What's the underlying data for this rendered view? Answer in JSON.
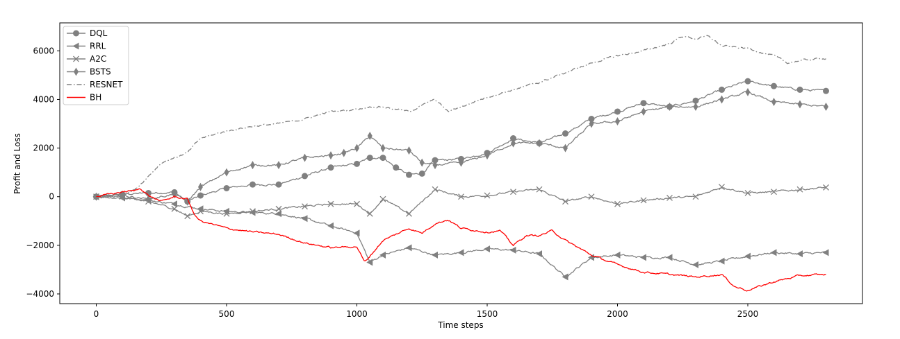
{
  "chart_data": {
    "type": "line",
    "title": "",
    "xlabel": "Time steps",
    "ylabel": "Profit and Loss",
    "xlim": [
      -140,
      2940
    ],
    "ylim": [
      -4400,
      7150
    ],
    "xticks": [
      0,
      500,
      1000,
      1500,
      2000,
      2500
    ],
    "yticks": [
      -4000,
      -2000,
      0,
      2000,
      4000,
      6000
    ],
    "grid": false,
    "legend_position": "top-left",
    "series": [
      {
        "name": "DQL",
        "color": "#808080",
        "style": "solid",
        "marker": "circle",
        "points": [
          [
            0,
            0
          ],
          [
            100,
            100
          ],
          [
            200,
            150
          ],
          [
            300,
            180
          ],
          [
            350,
            -200
          ],
          [
            400,
            50
          ],
          [
            500,
            350
          ],
          [
            600,
            500
          ],
          [
            700,
            500
          ],
          [
            800,
            850
          ],
          [
            900,
            1200
          ],
          [
            1000,
            1350
          ],
          [
            1050,
            1600
          ],
          [
            1100,
            1600
          ],
          [
            1150,
            1200
          ],
          [
            1200,
            900
          ],
          [
            1250,
            950
          ],
          [
            1300,
            1500
          ],
          [
            1400,
            1550
          ],
          [
            1500,
            1800
          ],
          [
            1600,
            2400
          ],
          [
            1700,
            2200
          ],
          [
            1800,
            2600
          ],
          [
            1900,
            3200
          ],
          [
            2000,
            3500
          ],
          [
            2100,
            3850
          ],
          [
            2200,
            3700
          ],
          [
            2300,
            3950
          ],
          [
            2400,
            4400
          ],
          [
            2500,
            4750
          ],
          [
            2600,
            4550
          ],
          [
            2700,
            4400
          ],
          [
            2800,
            4350
          ]
        ]
      },
      {
        "name": "RRL",
        "color": "#808080",
        "style": "solid",
        "marker": "triangle-left",
        "points": [
          [
            0,
            0
          ],
          [
            100,
            -50
          ],
          [
            200,
            -150
          ],
          [
            300,
            -300
          ],
          [
            400,
            -500
          ],
          [
            500,
            -600
          ],
          [
            600,
            -650
          ],
          [
            700,
            -700
          ],
          [
            800,
            -900
          ],
          [
            900,
            -1200
          ],
          [
            1000,
            -1500
          ],
          [
            1050,
            -2700
          ],
          [
            1100,
            -2400
          ],
          [
            1200,
            -2100
          ],
          [
            1300,
            -2400
          ],
          [
            1400,
            -2300
          ],
          [
            1500,
            -2150
          ],
          [
            1600,
            -2200
          ],
          [
            1700,
            -2350
          ],
          [
            1800,
            -3300
          ],
          [
            1900,
            -2500
          ],
          [
            2000,
            -2400
          ],
          [
            2100,
            -2500
          ],
          [
            2200,
            -2500
          ],
          [
            2300,
            -2800
          ],
          [
            2400,
            -2650
          ],
          [
            2500,
            -2450
          ],
          [
            2600,
            -2300
          ],
          [
            2700,
            -2350
          ],
          [
            2800,
            -2300
          ]
        ]
      },
      {
        "name": "A2C",
        "color": "#808080",
        "style": "solid",
        "marker": "x",
        "points": [
          [
            0,
            0
          ],
          [
            100,
            0
          ],
          [
            200,
            -200
          ],
          [
            300,
            -500
          ],
          [
            350,
            -800
          ],
          [
            400,
            -600
          ],
          [
            500,
            -700
          ],
          [
            600,
            -600
          ],
          [
            700,
            -500
          ],
          [
            800,
            -400
          ],
          [
            900,
            -300
          ],
          [
            1000,
            -300
          ],
          [
            1050,
            -700
          ],
          [
            1100,
            -100
          ],
          [
            1200,
            -700
          ],
          [
            1300,
            300
          ],
          [
            1400,
            0
          ],
          [
            1500,
            50
          ],
          [
            1600,
            200
          ],
          [
            1700,
            300
          ],
          [
            1800,
            -200
          ],
          [
            1900,
            0
          ],
          [
            2000,
            -300
          ],
          [
            2100,
            -150
          ],
          [
            2200,
            -50
          ],
          [
            2300,
            0
          ],
          [
            2400,
            400
          ],
          [
            2500,
            150
          ],
          [
            2600,
            200
          ],
          [
            2700,
            300
          ],
          [
            2800,
            380
          ]
        ]
      },
      {
        "name": "BSTS",
        "color": "#808080",
        "style": "solid",
        "marker": "diamond",
        "points": [
          [
            0,
            0
          ],
          [
            100,
            50
          ],
          [
            200,
            -100
          ],
          [
            300,
            100
          ],
          [
            350,
            -200
          ],
          [
            400,
            400
          ],
          [
            500,
            1000
          ],
          [
            600,
            1300
          ],
          [
            700,
            1300
          ],
          [
            800,
            1600
          ],
          [
            900,
            1700
          ],
          [
            950,
            1800
          ],
          [
            1000,
            2000
          ],
          [
            1050,
            2500
          ],
          [
            1100,
            2000
          ],
          [
            1200,
            1900
          ],
          [
            1250,
            1400
          ],
          [
            1300,
            1300
          ],
          [
            1400,
            1400
          ],
          [
            1500,
            1700
          ],
          [
            1600,
            2200
          ],
          [
            1700,
            2200
          ],
          [
            1800,
            2000
          ],
          [
            1900,
            3000
          ],
          [
            2000,
            3100
          ],
          [
            2100,
            3500
          ],
          [
            2200,
            3700
          ],
          [
            2300,
            3700
          ],
          [
            2400,
            4000
          ],
          [
            2500,
            4300
          ],
          [
            2600,
            3900
          ],
          [
            2700,
            3800
          ],
          [
            2800,
            3700
          ]
        ]
      },
      {
        "name": "RESNET",
        "color": "#808080",
        "style": "dashdot",
        "marker": "none",
        "points": [
          [
            0,
            0
          ],
          [
            100,
            100
          ],
          [
            150,
            300
          ],
          [
            250,
            1400
          ],
          [
            300,
            1600
          ],
          [
            350,
            1800
          ],
          [
            400,
            2400
          ],
          [
            500,
            2700
          ],
          [
            600,
            2900
          ],
          [
            700,
            3000
          ],
          [
            800,
            3200
          ],
          [
            900,
            3500
          ],
          [
            1000,
            3600
          ],
          [
            1050,
            3700
          ],
          [
            1100,
            3700
          ],
          [
            1200,
            3500
          ],
          [
            1300,
            4000
          ],
          [
            1350,
            3500
          ],
          [
            1400,
            3700
          ],
          [
            1500,
            4100
          ],
          [
            1600,
            4400
          ],
          [
            1700,
            4700
          ],
          [
            1800,
            5100
          ],
          [
            1900,
            5500
          ],
          [
            2000,
            5800
          ],
          [
            2100,
            6000
          ],
          [
            2200,
            6300
          ],
          [
            2250,
            6600
          ],
          [
            2300,
            6500
          ],
          [
            2350,
            6600
          ],
          [
            2400,
            6200
          ],
          [
            2500,
            6100
          ],
          [
            2600,
            5800
          ],
          [
            2650,
            5500
          ],
          [
            2700,
            5600
          ],
          [
            2800,
            5700
          ]
        ]
      },
      {
        "name": "BH",
        "color": "#ff0000",
        "style": "solid",
        "marker": "none",
        "points": [
          [
            0,
            0
          ],
          [
            50,
            100
          ],
          [
            100,
            200
          ],
          [
            150,
            250
          ],
          [
            170,
            350
          ],
          [
            200,
            50
          ],
          [
            250,
            -200
          ],
          [
            300,
            0
          ],
          [
            350,
            -100
          ],
          [
            380,
            -800
          ],
          [
            400,
            -1000
          ],
          [
            500,
            -1300
          ],
          [
            600,
            -1450
          ],
          [
            700,
            -1550
          ],
          [
            800,
            -1900
          ],
          [
            900,
            -2100
          ],
          [
            1000,
            -2050
          ],
          [
            1030,
            -2700
          ],
          [
            1100,
            -1800
          ],
          [
            1200,
            -1300
          ],
          [
            1250,
            -1500
          ],
          [
            1300,
            -1100
          ],
          [
            1350,
            -950
          ],
          [
            1400,
            -1300
          ],
          [
            1500,
            -1450
          ],
          [
            1550,
            -1400
          ],
          [
            1600,
            -2000
          ],
          [
            1650,
            -1600
          ],
          [
            1700,
            -1600
          ],
          [
            1750,
            -1400
          ],
          [
            1800,
            -1800
          ],
          [
            1900,
            -2400
          ],
          [
            2000,
            -2800
          ],
          [
            2100,
            -3100
          ],
          [
            2200,
            -3200
          ],
          [
            2300,
            -3300
          ],
          [
            2400,
            -3200
          ],
          [
            2450,
            -3700
          ],
          [
            2500,
            -3850
          ],
          [
            2600,
            -3500
          ],
          [
            2700,
            -3250
          ],
          [
            2800,
            -3200
          ]
        ]
      }
    ]
  }
}
